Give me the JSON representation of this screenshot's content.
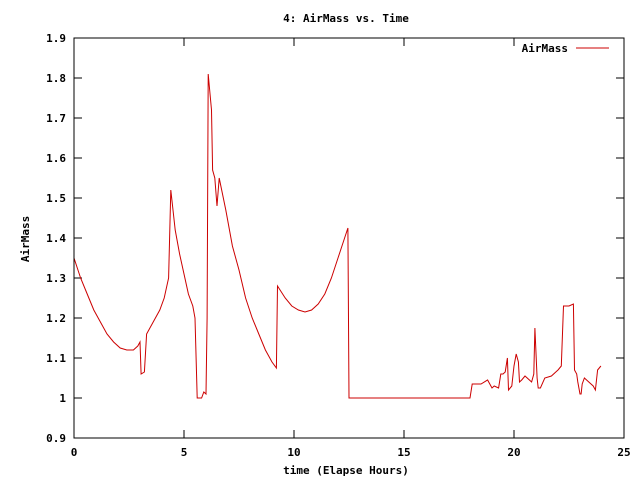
{
  "chart_data": {
    "type": "line",
    "title": "4: AirMass vs. Time",
    "xlabel": "time (Elapse Hours)",
    "ylabel": "AirMass",
    "xlim": [
      0,
      25
    ],
    "ylim": [
      0.9,
      1.9
    ],
    "xticks": [
      "0",
      "5",
      "10",
      "15",
      "20",
      "25"
    ],
    "yticks": [
      "0.9",
      "1",
      "1.1",
      "1.2",
      "1.3",
      "1.4",
      "1.5",
      "1.6",
      "1.7",
      "1.8",
      "1.9"
    ],
    "legend_position": "top-right",
    "grid": false,
    "series": [
      {
        "name": "AirMass",
        "color": "#cc0000",
        "points": [
          [
            0.0,
            1.35
          ],
          [
            0.3,
            1.3
          ],
          [
            0.6,
            1.26
          ],
          [
            0.9,
            1.22
          ],
          [
            1.2,
            1.19
          ],
          [
            1.5,
            1.16
          ],
          [
            1.8,
            1.14
          ],
          [
            2.1,
            1.125
          ],
          [
            2.4,
            1.12
          ],
          [
            2.7,
            1.12
          ],
          [
            2.9,
            1.13
          ],
          [
            3.0,
            1.14
          ],
          [
            3.05,
            1.06
          ],
          [
            3.2,
            1.065
          ],
          [
            3.3,
            1.16
          ],
          [
            3.6,
            1.19
          ],
          [
            3.9,
            1.22
          ],
          [
            4.1,
            1.25
          ],
          [
            4.3,
            1.3
          ],
          [
            4.4,
            1.52
          ],
          [
            4.6,
            1.42
          ],
          [
            4.8,
            1.36
          ],
          [
            5.0,
            1.31
          ],
          [
            5.2,
            1.26
          ],
          [
            5.4,
            1.23
          ],
          [
            5.5,
            1.2
          ],
          [
            5.6,
            1.0
          ],
          [
            5.8,
            1.0
          ],
          [
            5.9,
            1.015
          ],
          [
            6.0,
            1.01
          ],
          [
            6.05,
            1.2
          ],
          [
            6.1,
            1.81
          ],
          [
            6.25,
            1.72
          ],
          [
            6.3,
            1.57
          ],
          [
            6.4,
            1.55
          ],
          [
            6.5,
            1.48
          ],
          [
            6.6,
            1.55
          ],
          [
            6.9,
            1.47
          ],
          [
            7.2,
            1.38
          ],
          [
            7.5,
            1.32
          ],
          [
            7.8,
            1.25
          ],
          [
            8.1,
            1.2
          ],
          [
            8.4,
            1.16
          ],
          [
            8.7,
            1.12
          ],
          [
            9.0,
            1.09
          ],
          [
            9.2,
            1.075
          ],
          [
            9.25,
            1.28
          ],
          [
            9.6,
            1.25
          ],
          [
            9.9,
            1.23
          ],
          [
            10.2,
            1.22
          ],
          [
            10.5,
            1.215
          ],
          [
            10.8,
            1.22
          ],
          [
            11.1,
            1.235
          ],
          [
            11.4,
            1.26
          ],
          [
            11.7,
            1.3
          ],
          [
            12.0,
            1.35
          ],
          [
            12.3,
            1.4
          ],
          [
            12.45,
            1.425
          ],
          [
            12.5,
            1.0
          ],
          [
            14.0,
            1.0
          ],
          [
            16.0,
            1.0
          ],
          [
            18.0,
            1.0
          ],
          [
            18.1,
            1.035
          ],
          [
            18.5,
            1.035
          ],
          [
            18.8,
            1.045
          ],
          [
            18.9,
            1.035
          ],
          [
            19.0,
            1.025
          ],
          [
            19.1,
            1.03
          ],
          [
            19.3,
            1.025
          ],
          [
            19.4,
            1.06
          ],
          [
            19.5,
            1.06
          ],
          [
            19.6,
            1.065
          ],
          [
            19.7,
            1.1
          ],
          [
            19.75,
            1.02
          ],
          [
            19.9,
            1.03
          ],
          [
            20.0,
            1.08
          ],
          [
            20.1,
            1.11
          ],
          [
            20.2,
            1.09
          ],
          [
            20.25,
            1.04
          ],
          [
            20.35,
            1.045
          ],
          [
            20.5,
            1.055
          ],
          [
            20.8,
            1.04
          ],
          [
            20.9,
            1.06
          ],
          [
            20.95,
            1.175
          ],
          [
            21.05,
            1.05
          ],
          [
            21.1,
            1.025
          ],
          [
            21.2,
            1.025
          ],
          [
            21.4,
            1.05
          ],
          [
            21.7,
            1.055
          ],
          [
            21.9,
            1.065
          ],
          [
            22.0,
            1.07
          ],
          [
            22.15,
            1.08
          ],
          [
            22.25,
            1.23
          ],
          [
            22.5,
            1.23
          ],
          [
            22.7,
            1.235
          ],
          [
            22.75,
            1.07
          ],
          [
            22.85,
            1.06
          ],
          [
            22.9,
            1.04
          ],
          [
            23.0,
            1.01
          ],
          [
            23.05,
            1.01
          ],
          [
            23.1,
            1.035
          ],
          [
            23.2,
            1.05
          ],
          [
            23.4,
            1.04
          ],
          [
            23.6,
            1.03
          ],
          [
            23.7,
            1.02
          ],
          [
            23.8,
            1.07
          ],
          [
            23.95,
            1.08
          ]
        ]
      }
    ]
  }
}
